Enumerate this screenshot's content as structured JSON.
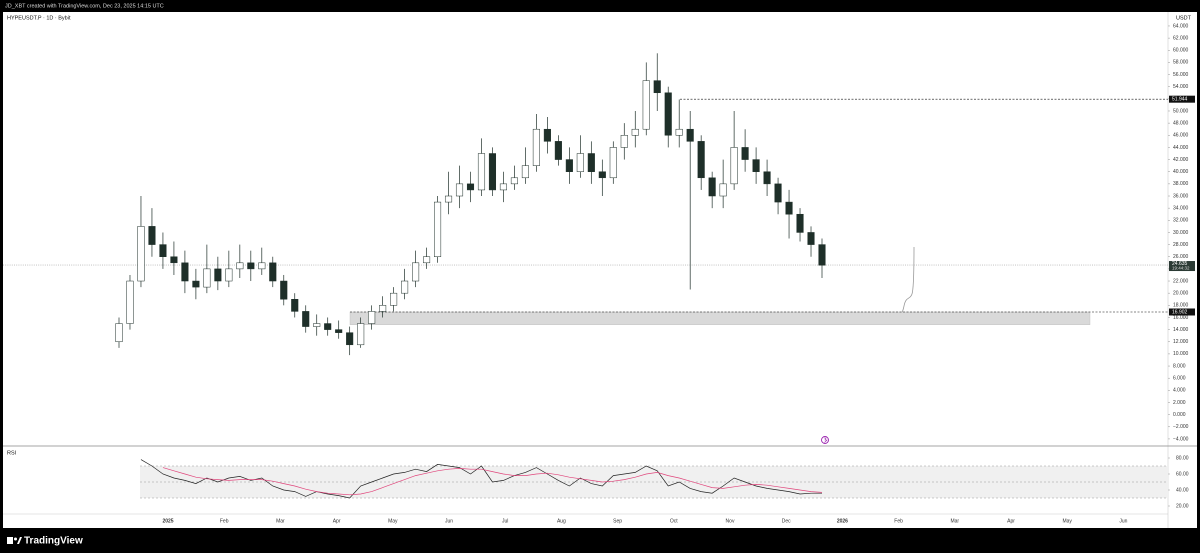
{
  "header": {
    "credit": "JD_XBT created with TradingView.com, Dec 23, 2025 14:15 UTC"
  },
  "footer": {
    "brand": "TradingView"
  },
  "chart_data": [
    {
      "type": "candlestick",
      "title": "HYPEUSDT.P · 1D · Bybit",
      "y_axis_label": "USDT",
      "open": [
        12,
        15,
        22,
        31,
        28,
        26,
        25,
        22,
        21,
        24,
        22,
        24,
        25,
        24,
        25,
        22,
        19,
        17,
        14.5,
        15,
        14,
        13.5,
        11.5,
        15,
        17,
        18,
        20,
        22,
        25,
        26,
        35,
        36,
        38,
        37,
        43,
        37,
        38,
        39,
        41,
        47,
        45,
        42,
        40,
        43,
        40,
        39,
        44,
        46,
        47,
        55,
        53,
        46,
        47,
        45,
        39,
        36,
        38,
        44,
        42,
        40,
        38,
        35,
        33,
        30,
        28
      ],
      "high": [
        16,
        23,
        36,
        34,
        30,
        28.5,
        27,
        24,
        28,
        26,
        27,
        28,
        27,
        27.5,
        26,
        23,
        20,
        18,
        16.5,
        16,
        15.5,
        14.5,
        16,
        18,
        19.5,
        21,
        24,
        27,
        27.5,
        36,
        40,
        41,
        40,
        45.5,
        44,
        40,
        41,
        44,
        49.5,
        49,
        46,
        44,
        46,
        45,
        42,
        45,
        48,
        50,
        58,
        59.5,
        54,
        51.9,
        50,
        46,
        40,
        42,
        50,
        47,
        44,
        42,
        39,
        37,
        34,
        31,
        29
      ],
      "low": [
        11,
        14,
        21,
        26,
        24,
        23,
        20,
        19,
        20,
        20.5,
        21,
        22.5,
        22,
        23,
        21,
        18,
        16,
        13.5,
        13,
        13,
        12.5,
        9.8,
        11,
        14,
        16,
        17,
        19,
        21,
        24,
        25,
        33,
        34,
        35,
        36,
        36,
        35,
        37,
        38,
        40,
        43,
        41,
        38,
        39,
        38,
        36,
        38,
        42,
        44,
        46,
        50,
        44,
        44,
        20.6,
        37,
        34,
        34,
        37,
        40,
        38,
        36,
        33,
        29,
        28.5,
        26,
        22.5
      ],
      "close": [
        15,
        22,
        31,
        28,
        26,
        25,
        22,
        21,
        24,
        22,
        24,
        25,
        24,
        25,
        22,
        19,
        17,
        14.5,
        15,
        14,
        13.5,
        11.5,
        15,
        17,
        18,
        20,
        22,
        25,
        26,
        35,
        36,
        38,
        37,
        43,
        37,
        38,
        39,
        41,
        47,
        45,
        42,
        40,
        43,
        40,
        39,
        44,
        46,
        47,
        55,
        53,
        46,
        47,
        45,
        39,
        36,
        38,
        44,
        42,
        40,
        38,
        35,
        33,
        30,
        28,
        24.6
      ],
      "up_color": "#ffffff",
      "down_color": "#1e2f29",
      "wick_color": "#1e2f29",
      "ylim": [
        -5,
        66.3
      ],
      "yticks": [
        {
          "value": -4,
          "label": "−4.000"
        },
        {
          "value": -2,
          "label": "−2.000"
        },
        {
          "value": 0,
          "label": "0.000"
        },
        {
          "value": 2,
          "label": "2.000"
        },
        {
          "value": 4,
          "label": "4.000"
        },
        {
          "value": 6,
          "label": "6.000"
        },
        {
          "value": 8,
          "label": "8.000"
        },
        {
          "value": 10,
          "label": "10.000"
        },
        {
          "value": 12,
          "label": "12.000"
        },
        {
          "value": 14,
          "label": "14.000"
        },
        {
          "value": 16,
          "label": "16.000"
        },
        {
          "value": 18,
          "label": "18.000"
        },
        {
          "value": 20,
          "label": "20.000"
        },
        {
          "value": 22,
          "label": "22.000"
        },
        {
          "value": 24,
          "label": "24.000"
        },
        {
          "value": 26,
          "label": "26.000"
        },
        {
          "value": 28,
          "label": "28.000"
        },
        {
          "value": 30,
          "label": "30.000"
        },
        {
          "value": 32,
          "label": "32.000"
        },
        {
          "value": 34,
          "label": "34.000"
        },
        {
          "value": 36,
          "label": "36.000"
        },
        {
          "value": 38,
          "label": "38.000"
        },
        {
          "value": 40,
          "label": "40.000"
        },
        {
          "value": 42,
          "label": "42.000"
        },
        {
          "value": 44,
          "label": "44.000"
        },
        {
          "value": 46,
          "label": "46.000"
        },
        {
          "value": 48,
          "label": "48.000"
        },
        {
          "value": 50,
          "label": "50.000"
        },
        {
          "value": 52,
          "label": "52.000"
        },
        {
          "value": 54,
          "label": "54.000"
        },
        {
          "value": 56,
          "label": "56.000"
        },
        {
          "value": 58,
          "label": "58.000"
        },
        {
          "value": 60,
          "label": "60.000"
        },
        {
          "value": 62,
          "label": "62.000"
        },
        {
          "value": 64,
          "label": "64.000"
        }
      ],
      "levels": [
        {
          "value": 51.944,
          "label": "51.944"
        },
        {
          "value": 16.902,
          "label": "16.902"
        }
      ],
      "zone": [
        14.8,
        16.902
      ],
      "last_price": {
        "value": 24.635,
        "label": "24.635",
        "countdown": "19:44:32"
      },
      "time_labels": [
        "2025",
        "Feb",
        "Mar",
        "Apr",
        "May",
        "Jun",
        "Jul",
        "Aug",
        "Sep",
        "Oct",
        "Nov",
        "Dec",
        "2026",
        "Feb",
        "Mar",
        "Apr",
        "May",
        "Jun"
      ]
    },
    {
      "type": "line",
      "title": "RSI",
      "series": [
        {
          "color": "#222222",
          "values": [
            null,
            null,
            78,
            70,
            60,
            55,
            52,
            48,
            55,
            50,
            55,
            57,
            52,
            55,
            45,
            40,
            38,
            32,
            38,
            35,
            33,
            30,
            45,
            50,
            55,
            60,
            62,
            66,
            63,
            72,
            70,
            68,
            60,
            70,
            50,
            52,
            58,
            62,
            68,
            60,
            52,
            45,
            55,
            48,
            45,
            58,
            60,
            62,
            70,
            64,
            45,
            50,
            42,
            38,
            36,
            45,
            55,
            50,
            45,
            42,
            40,
            38,
            35,
            36,
            36
          ]
        },
        {
          "color": "#e0457b",
          "values": [
            null,
            null,
            null,
            null,
            68,
            64,
            60,
            56,
            54,
            53,
            52,
            53,
            53,
            53,
            51,
            48,
            45,
            41,
            38,
            36,
            35,
            34,
            35,
            38,
            43,
            48,
            53,
            58,
            61,
            64,
            66,
            67,
            66,
            66,
            63,
            60,
            58,
            58,
            60,
            61,
            59,
            56,
            54,
            52,
            50,
            51,
            53,
            56,
            60,
            62,
            58,
            55,
            51,
            47,
            43,
            42,
            44,
            46,
            47,
            46,
            44,
            42,
            40,
            38,
            37
          ]
        }
      ],
      "ylim": [
        11.25,
        93.75
      ],
      "yticks": [
        {
          "value": 20,
          "label": "20.00"
        },
        {
          "value": 40,
          "label": "40.00"
        },
        {
          "value": 60,
          "label": "60.00"
        },
        {
          "value": 80,
          "label": "80.00"
        }
      ],
      "band": [
        30,
        70
      ],
      "guides": [
        70,
        50,
        30
      ]
    }
  ]
}
